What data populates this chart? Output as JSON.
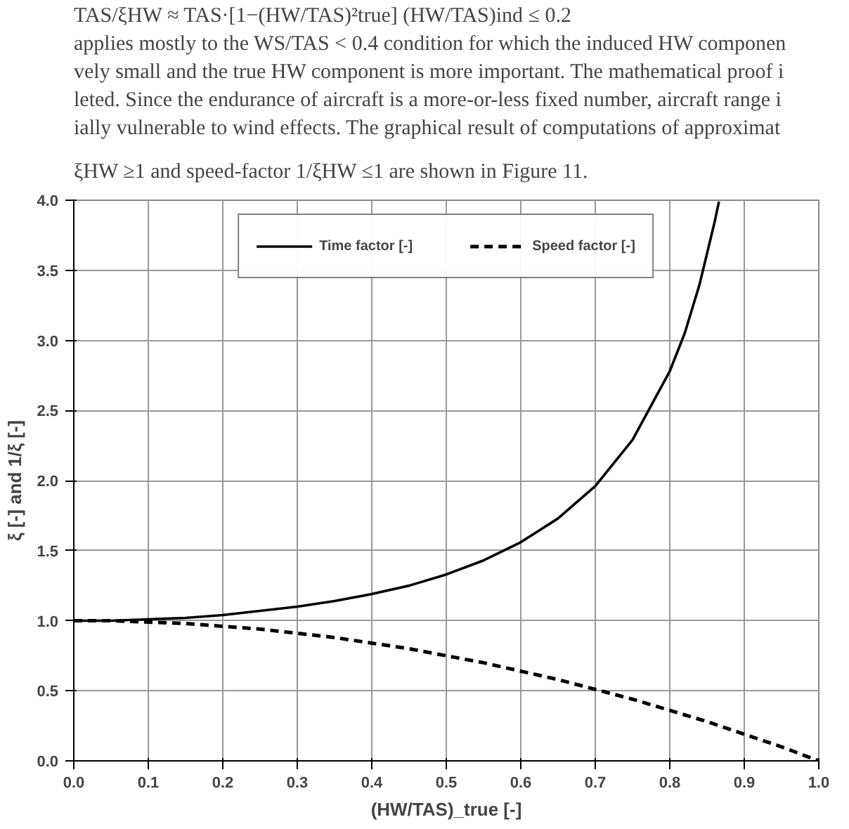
{
  "chart_data": {
    "type": "line",
    "xlabel": "(HW/TAS)_true [-]",
    "ylabel": "ξ [-] and 1/ξ [-]",
    "annotations": [
      "TAS/ξHW ≈ TAS·[1−(HW/TAS)²true]        (HW/TAS)ind ≤ 0.2",
      "applies mostly to the WS/TAS < 0.4 condition for which the induced HW componen",
      "vely small and the true HW component is more important. The mathematical proof i",
      "leted. Since the endurance of aircraft is a more-or-less fixed number, aircraft range i",
      "ially vulnerable to wind effects. The graphical result of computations of approximat",
      "ξHW ≥1 and speed-factor 1/ξHW ≤1 are shown in Figure 11."
    ],
    "series": [
      {
        "name": "Time factor [-]",
        "color": "#000000",
        "line_style": "solid",
        "x": [
          0,
          0.05,
          0.1,
          0.15,
          0.2,
          0.25,
          0.3,
          0.35,
          0.4,
          0.45,
          0.5,
          0.55,
          0.6,
          0.65,
          0.7,
          0.75,
          0.8,
          0.82,
          0.84,
          0.86,
          0.866
        ],
        "values": [
          1.0,
          1.0,
          1.01,
          1.02,
          1.04,
          1.07,
          1.1,
          1.14,
          1.19,
          1.25,
          1.33,
          1.43,
          1.56,
          1.73,
          1.96,
          2.29,
          2.78,
          3.05,
          3.4,
          3.84,
          3.99
        ]
      },
      {
        "name": "Speed factor [-]",
        "color": "#000000",
        "line_style": "dashed",
        "x": [
          0,
          0.05,
          0.1,
          0.15,
          0.2,
          0.25,
          0.3,
          0.35,
          0.4,
          0.45,
          0.5,
          0.55,
          0.6,
          0.65,
          0.7,
          0.75,
          0.8,
          0.85,
          0.9,
          0.95,
          1.0
        ],
        "values": [
          1.0,
          1.0,
          0.99,
          0.98,
          0.96,
          0.94,
          0.91,
          0.88,
          0.84,
          0.8,
          0.75,
          0.7,
          0.64,
          0.58,
          0.51,
          0.44,
          0.36,
          0.28,
          0.19,
          0.1,
          0.0
        ]
      }
    ],
    "xlim": [
      0,
      1.0
    ],
    "ylim": [
      0,
      4.0
    ],
    "xticks": [
      {
        "value": 0,
        "label": "0.0"
      },
      0.1,
      0.2,
      0.3,
      0.4,
      0.5,
      0.6,
      0.7,
      0.8,
      0.9,
      {
        "value": 1.0,
        "label": "1.0"
      }
    ],
    "yticks": [
      {
        "value": 0,
        "label": "0.0"
      },
      0.5,
      {
        "value": 1,
        "label": "1.0"
      },
      1.5,
      {
        "value": 2,
        "label": "2.0"
      },
      2.5,
      {
        "value": 3,
        "label": "3.0"
      },
      3.5,
      {
        "value": 4,
        "label": "4.0"
      }
    ],
    "grid": true,
    "legend": "top"
  }
}
